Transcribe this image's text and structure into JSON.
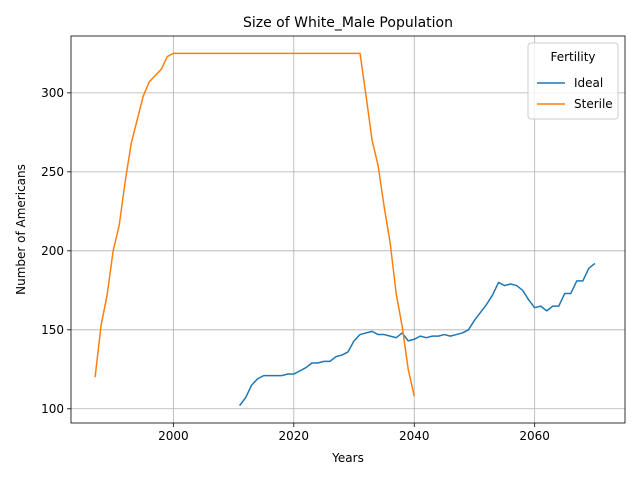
{
  "chart_data": {
    "type": "line",
    "title": "Size of White_Male Population",
    "xlabel": "Years",
    "ylabel": "Number of Americans",
    "xlim": [
      1983,
      2075
    ],
    "ylim": [
      91,
      336
    ],
    "xticks": [
      2000,
      2020,
      2040,
      2060
    ],
    "yticks": [
      100,
      150,
      200,
      250,
      300
    ],
    "grid": true,
    "legend": {
      "title": "Fertility",
      "placement": "top-right"
    },
    "series": [
      {
        "name": "Ideal",
        "color": "#1f77b4",
        "points": [
          [
            2011,
            102
          ],
          [
            2012,
            107
          ],
          [
            2013,
            115
          ],
          [
            2014,
            119
          ],
          [
            2015,
            121
          ],
          [
            2016,
            121
          ],
          [
            2017,
            121
          ],
          [
            2018,
            121
          ],
          [
            2019,
            122
          ],
          [
            2020,
            122
          ],
          [
            2021,
            124
          ],
          [
            2022,
            126
          ],
          [
            2023,
            129
          ],
          [
            2024,
            129
          ],
          [
            2025,
            130
          ],
          [
            2026,
            130
          ],
          [
            2027,
            133
          ],
          [
            2028,
            134
          ],
          [
            2029,
            136
          ],
          [
            2030,
            143
          ],
          [
            2031,
            147
          ],
          [
            2032,
            148
          ],
          [
            2033,
            149
          ],
          [
            2034,
            147
          ],
          [
            2035,
            147
          ],
          [
            2036,
            146
          ],
          [
            2037,
            145
          ],
          [
            2038,
            148
          ],
          [
            2039,
            143
          ],
          [
            2040,
            144
          ],
          [
            2041,
            146
          ],
          [
            2042,
            145
          ],
          [
            2043,
            146
          ],
          [
            2044,
            146
          ],
          [
            2045,
            147
          ],
          [
            2046,
            146
          ],
          [
            2047,
            147
          ],
          [
            2048,
            148
          ],
          [
            2049,
            150
          ],
          [
            2050,
            156
          ],
          [
            2051,
            161
          ],
          [
            2052,
            166
          ],
          [
            2053,
            172
          ],
          [
            2054,
            180
          ],
          [
            2055,
            178
          ],
          [
            2056,
            179
          ],
          [
            2057,
            178
          ],
          [
            2058,
            175
          ],
          [
            2059,
            169
          ],
          [
            2060,
            164
          ],
          [
            2061,
            165
          ],
          [
            2062,
            162
          ],
          [
            2063,
            165
          ],
          [
            2064,
            165
          ],
          [
            2065,
            173
          ],
          [
            2066,
            173
          ],
          [
            2067,
            181
          ],
          [
            2068,
            181
          ],
          [
            2069,
            189
          ],
          [
            2070,
            192
          ]
        ]
      },
      {
        "name": "Sterile",
        "color": "#ff7f0e",
        "points": [
          [
            1987,
            120
          ],
          [
            1988,
            153
          ],
          [
            1989,
            172
          ],
          [
            1990,
            200
          ],
          [
            1991,
            216
          ],
          [
            1992,
            244
          ],
          [
            1993,
            268
          ],
          [
            1994,
            283
          ],
          [
            1995,
            298
          ],
          [
            1996,
            307
          ],
          [
            1997,
            311
          ],
          [
            1998,
            315
          ],
          [
            1999,
            323
          ],
          [
            2000,
            325
          ],
          [
            2005,
            325
          ],
          [
            2010,
            325
          ],
          [
            2015,
            325
          ],
          [
            2020,
            325
          ],
          [
            2025,
            325
          ],
          [
            2030,
            325
          ],
          [
            2031,
            325
          ],
          [
            2032,
            298
          ],
          [
            2033,
            270
          ],
          [
            2034,
            254
          ],
          [
            2035,
            228
          ],
          [
            2036,
            205
          ],
          [
            2037,
            173
          ],
          [
            2038,
            152
          ],
          [
            2039,
            125
          ],
          [
            2040,
            108
          ]
        ]
      }
    ]
  }
}
